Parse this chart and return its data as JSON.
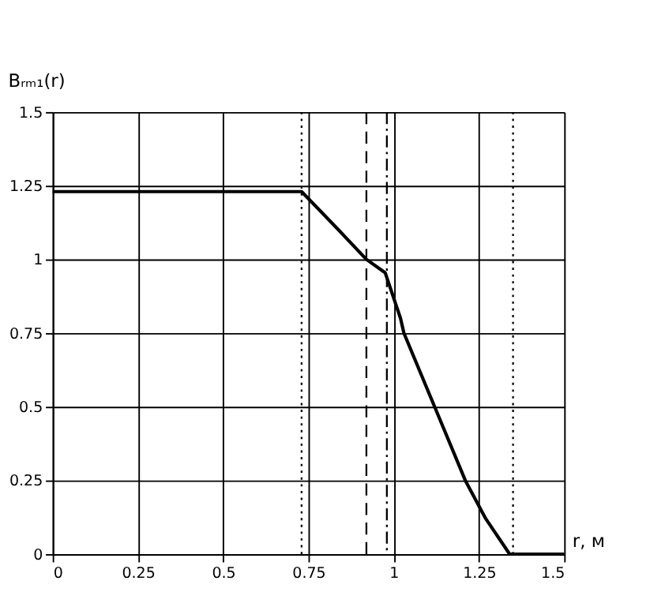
{
  "chart_data": {
    "type": "line",
    "ylabel": "Bᵣₘ₁(r)",
    "xlabel": "r, м",
    "series": [
      {
        "color": "#000000",
        "x": [
          0,
          0.73,
          0.83,
          0.92,
          0.975,
          1.02,
          1.03,
          1.12,
          1.21,
          1.27,
          1.34,
          1.5
        ],
        "values": [
          1.23,
          1.23,
          1.11,
          1.0,
          0.955,
          0.8,
          0.75,
          0.5,
          0.25,
          0.12,
          0,
          0
        ]
      }
    ],
    "xlim": [
      0,
      1.5
    ],
    "xticks": [
      0,
      0.25,
      0.5,
      0.75,
      1,
      1.25,
      1.5
    ],
    "ylim": [
      0,
      1.5
    ],
    "yticks": [
      0,
      0.25,
      0.5,
      0.75,
      1,
      1.25,
      1.5
    ],
    "grid": true,
    "marker": "none",
    "line_style": "solid",
    "ref_lines": [
      {
        "axis": "x",
        "value": 0.73,
        "color": "#000000",
        "line_style": "dotted"
      },
      {
        "axis": "x",
        "value": 0.92,
        "color": "#000000",
        "line_style": "dashed"
      },
      {
        "axis": "x",
        "value": 0.98,
        "color": "#000000",
        "line_style": "dashdot"
      },
      {
        "axis": "x",
        "value": 1.35,
        "color": "#000000",
        "line_style": "dotted"
      }
    ]
  }
}
